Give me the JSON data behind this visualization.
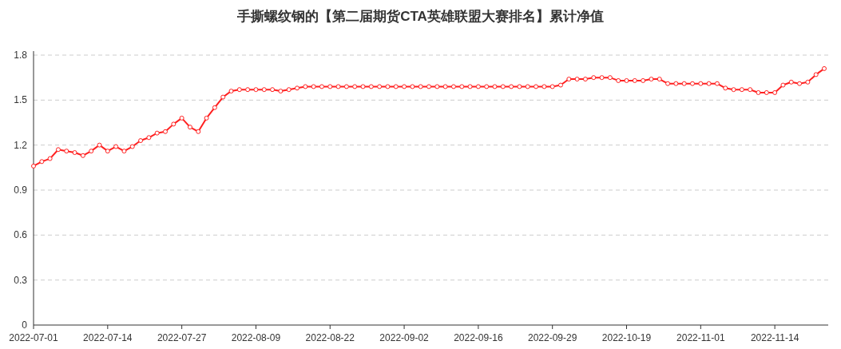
{
  "chart_data": {
    "type": "line",
    "title": "手撕螺纹钢的【第二届期货CTA英雄联盟大赛排名】累计净值",
    "categories": [
      "2022-07-01",
      null,
      null,
      null,
      null,
      null,
      null,
      null,
      null,
      "2022-07-14",
      null,
      null,
      null,
      null,
      null,
      null,
      null,
      null,
      "2022-07-27",
      null,
      null,
      null,
      null,
      null,
      null,
      null,
      null,
      "2022-08-09",
      null,
      null,
      null,
      null,
      null,
      null,
      null,
      null,
      "2022-08-22",
      null,
      null,
      null,
      null,
      null,
      null,
      null,
      null,
      "2022-09-02",
      null,
      null,
      null,
      null,
      null,
      null,
      null,
      null,
      "2022-09-16",
      null,
      null,
      null,
      null,
      null,
      null,
      null,
      null,
      "2022-09-29",
      null,
      null,
      null,
      null,
      null,
      null,
      null,
      null,
      "2022-10-19",
      null,
      null,
      null,
      null,
      null,
      null,
      null,
      null,
      "2022-11-01",
      null,
      null,
      null,
      null,
      null,
      null,
      null,
      null,
      "2022-11-14",
      null,
      null,
      null,
      null,
      null,
      null
    ],
    "series": [
      {
        "color": "#ff2020",
        "values": [
          1.06,
          1.09,
          1.11,
          1.17,
          1.16,
          1.15,
          1.13,
          1.16,
          1.2,
          1.16,
          1.19,
          1.16,
          1.19,
          1.23,
          1.25,
          1.28,
          1.29,
          1.34,
          1.38,
          1.32,
          1.29,
          1.38,
          1.45,
          1.52,
          1.56,
          1.57,
          1.57,
          1.57,
          1.57,
          1.57,
          1.56,
          1.57,
          1.58,
          1.59,
          1.59,
          1.59,
          1.59,
          1.59,
          1.59,
          1.59,
          1.59,
          1.59,
          1.59,
          1.59,
          1.59,
          1.59,
          1.59,
          1.59,
          1.59,
          1.59,
          1.59,
          1.59,
          1.59,
          1.59,
          1.59,
          1.59,
          1.59,
          1.59,
          1.59,
          1.59,
          1.59,
          1.59,
          1.59,
          1.59,
          1.6,
          1.64,
          1.64,
          1.64,
          1.65,
          1.65,
          1.65,
          1.63,
          1.63,
          1.63,
          1.63,
          1.64,
          1.64,
          1.61,
          1.61,
          1.61,
          1.61,
          1.61,
          1.61,
          1.61,
          1.58,
          1.57,
          1.57,
          1.57,
          1.55,
          1.55,
          1.55,
          1.6,
          1.62,
          1.61,
          1.62,
          1.67,
          1.71
        ]
      }
    ],
    "ylim": [
      0,
      1.8
    ],
    "yticks": [
      0,
      0.3,
      0.6,
      0.9,
      1.2,
      1.5,
      1.8
    ],
    "grid": "y",
    "marker": "circle",
    "line_style": "solid"
  }
}
